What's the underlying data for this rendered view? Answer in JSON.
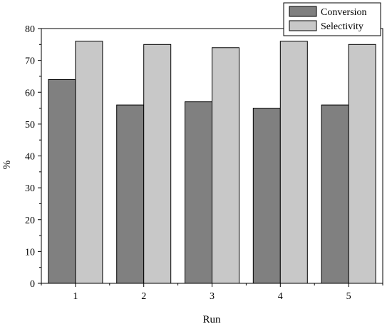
{
  "chart_data": {
    "type": "bar",
    "categories": [
      "1",
      "2",
      "3",
      "4",
      "5"
    ],
    "series": [
      {
        "name": "Conversion",
        "values": [
          64,
          56,
          57,
          55,
          56
        ],
        "color": "#808080"
      },
      {
        "name": "Selectivity",
        "values": [
          76,
          75,
          74,
          76,
          75
        ],
        "color": "#c8c8c8"
      }
    ],
    "xlabel": "Run",
    "ylabel": "%",
    "ylim": [
      0,
      80
    ],
    "yticks": [
      "0",
      "10",
      "20",
      "30",
      "40",
      "50",
      "60",
      "70",
      "80"
    ],
    "grid": false,
    "legend_position": "top-right"
  }
}
